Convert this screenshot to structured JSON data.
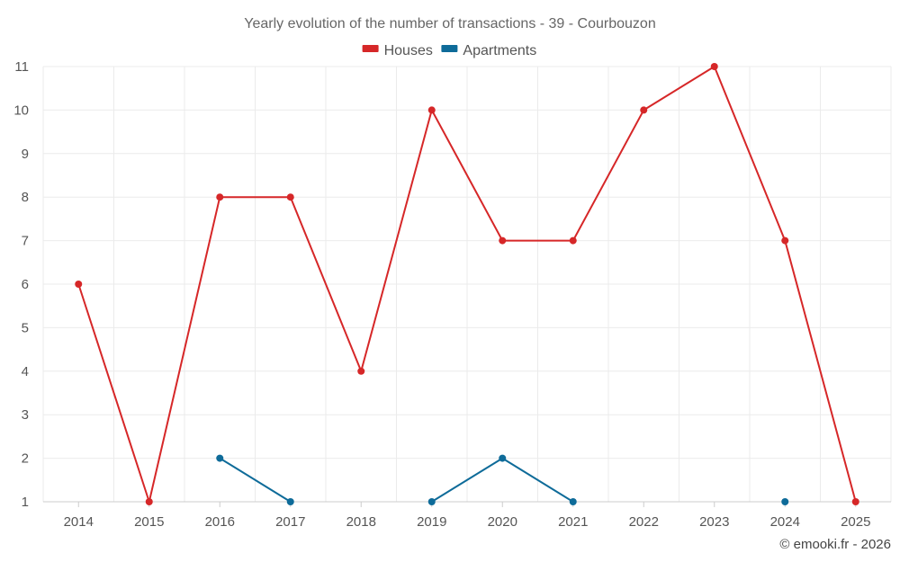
{
  "chart_data": {
    "type": "line",
    "title": "Yearly evolution of the number of transactions - 39 - Courbouzon",
    "xlabel": "",
    "ylabel": "",
    "categories": [
      "2014",
      "2015",
      "2016",
      "2017",
      "2018",
      "2019",
      "2020",
      "2021",
      "2022",
      "2023",
      "2024",
      "2025"
    ],
    "ylim": [
      1,
      11
    ],
    "yticks": [
      1,
      2,
      3,
      4,
      5,
      6,
      7,
      8,
      9,
      10,
      11
    ],
    "grid": true,
    "legend_position": "top-center",
    "series": [
      {
        "name": "Houses",
        "color": "#d62728",
        "values": [
          6,
          1,
          8,
          8,
          4,
          10,
          7,
          7,
          10,
          11,
          7,
          1
        ]
      },
      {
        "name": "Apartments",
        "color": "#0e6b99",
        "values": [
          null,
          null,
          2,
          1,
          null,
          1,
          2,
          1,
          null,
          null,
          1,
          null
        ]
      }
    ]
  },
  "credit": "© emooki.fr - 2026"
}
